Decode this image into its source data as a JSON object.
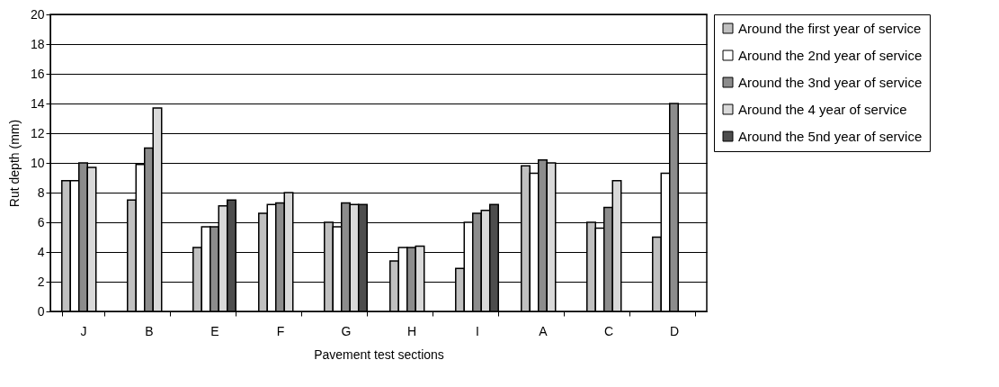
{
  "chart_data": {
    "type": "bar",
    "xlabel": "Pavement test sections",
    "ylabel": "Rut depth (mm)",
    "categories": [
      "J",
      "B",
      "E",
      "F",
      "G",
      "H",
      "I",
      "A",
      "C",
      "D"
    ],
    "series": [
      {
        "name": "Around the first year of service",
        "color": "#c0c0c0",
        "values": [
          8.8,
          7.5,
          4.3,
          6.6,
          6.0,
          3.4,
          2.9,
          9.8,
          6.0,
          5.0
        ]
      },
      {
        "name": "Around the 2nd year of service",
        "color": "#ffffff",
        "values": [
          8.8,
          9.9,
          5.7,
          7.2,
          5.7,
          4.3,
          6.0,
          9.3,
          5.6,
          9.3
        ]
      },
      {
        "name": "Around the 3nd year of service",
        "color": "#8c8c8c",
        "values": [
          10.0,
          11.0,
          5.7,
          7.3,
          7.3,
          4.3,
          6.6,
          10.2,
          7.0,
          14.0
        ]
      },
      {
        "name": "Around the 4 year of service",
        "color": "#d9d9d9",
        "values": [
          9.7,
          13.7,
          7.1,
          8.0,
          7.2,
          4.4,
          6.8,
          10.0,
          8.8,
          null
        ]
      },
      {
        "name": "Around the 5nd year of service",
        "color": "#4d4d4d",
        "values": [
          null,
          null,
          7.5,
          null,
          7.2,
          null,
          7.2,
          null,
          null,
          null
        ]
      }
    ],
    "ylim": [
      0,
      20
    ],
    "yticks": [
      0,
      2,
      4,
      6,
      8,
      10,
      12,
      14,
      16,
      18,
      20
    ],
    "grid": "y",
    "legend": "right"
  }
}
